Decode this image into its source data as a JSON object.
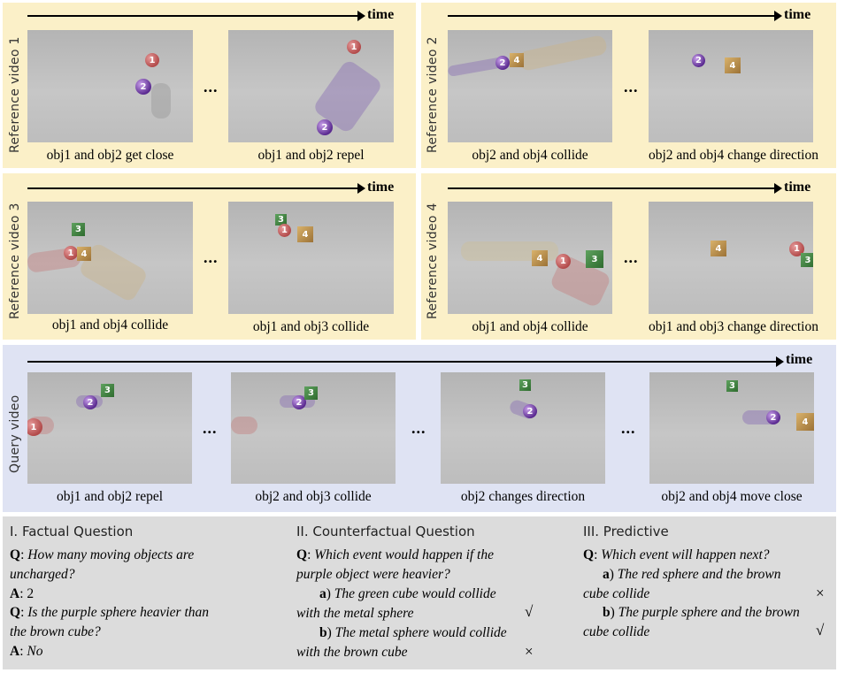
{
  "time_label": "time",
  "ellipsis": "...",
  "references": [
    {
      "label": "Reference video 1",
      "captions": [
        "obj1 and obj2 get close",
        "obj1 and obj2 repel"
      ]
    },
    {
      "label": "Reference video 2",
      "captions": [
        "obj2 and obj4 collide",
        "obj2 and obj4 change direction"
      ]
    },
    {
      "label": "Reference video 3",
      "captions": [
        "obj1 and obj4 collide",
        "obj1 and obj3 collide"
      ]
    },
    {
      "label": "Reference video 4",
      "captions": [
        "obj1 and obj4 collide",
        "obj1 and obj3 change direction"
      ]
    }
  ],
  "query": {
    "label": "Query video",
    "captions": [
      "obj1 and obj2 repel",
      "obj2 and obj3 collide",
      "obj2 changes direction",
      "obj2 and obj4 move close"
    ]
  },
  "object_ids": [
    "1",
    "2",
    "3",
    "4"
  ],
  "colors": {
    "reference_bg": "#fbf0c8",
    "query_bg": "#dfe3f3",
    "qa_bg": "#dcdcdc"
  },
  "questions": {
    "factual": {
      "title": "I. Factual Question",
      "q1_prefix": "Q",
      "q1_line1": "How many moving objects are",
      "q1_line2": "uncharged?",
      "a1_prefix": "A",
      "a1": "2",
      "q2_prefix": "Q",
      "q2_line1": "Is the purple sphere heavier than",
      "q2_line2": "the brown cube?",
      "a2_prefix": "A",
      "a2": "No"
    },
    "counterfactual": {
      "title": "II. Counterfactual Question",
      "q_prefix": "Q",
      "q_line1": "Which event would  happen if the",
      "q_line2": "purple object were heavier?",
      "opt_a_key": "a",
      "opt_a_line1": "The green cube would collide",
      "opt_a_line2": "with the metal sphere",
      "opt_a_mark": "√",
      "opt_b_key": "b",
      "opt_b_line1": "The metal sphere would collide",
      "opt_b_line2": "with the brown cube",
      "opt_b_mark": "×"
    },
    "predictive": {
      "title": "III. Predictive",
      "q_prefix": "Q",
      "q_line1": "Which event will happen next?",
      "opt_a_key": "a",
      "opt_a_line1": "The red sphere and the brown",
      "opt_a_line2": "cube collide",
      "opt_a_mark": "×",
      "opt_b_key": "b",
      "opt_b_line1": "The purple sphere and the brown",
      "opt_b_line2": "cube collide",
      "opt_b_mark": "√"
    }
  }
}
